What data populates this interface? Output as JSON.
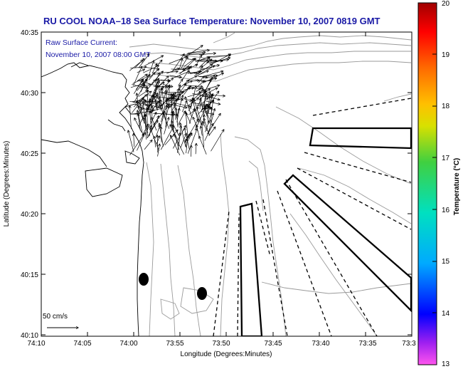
{
  "title": "RU COOL  NOAA–18  Sea Surface Temperature:  November 10, 2007 0819 GMT",
  "annotation": {
    "line1": "Raw Surface Current:",
    "line2": "November 10, 2007 08:00 GMT"
  },
  "scale_label": "50 cm/s",
  "axes": {
    "xlabel": "Longitude (Degrees:Minutes)",
    "ylabel": "Latitude (Degrees:Minutes)",
    "xticks": [
      "74:10",
      "74:05",
      "74:00",
      "73:55",
      "73:50",
      "73:45",
      "73:40",
      "73:35",
      "73:3"
    ],
    "yticks": [
      "40:35",
      "40:30",
      "40:25",
      "40:20",
      "40:15",
      "40:10"
    ]
  },
  "colorbar": {
    "label": "Temperature (°C)",
    "ticks": [
      "20",
      "19",
      "18",
      "17",
      "16",
      "15",
      "14",
      "13"
    ],
    "min": 13,
    "max": 20
  },
  "colors": {
    "title_text": "#1a1aa6",
    "contour": "#9a9a9a",
    "coast": "#000000",
    "frame": "#000000"
  }
}
